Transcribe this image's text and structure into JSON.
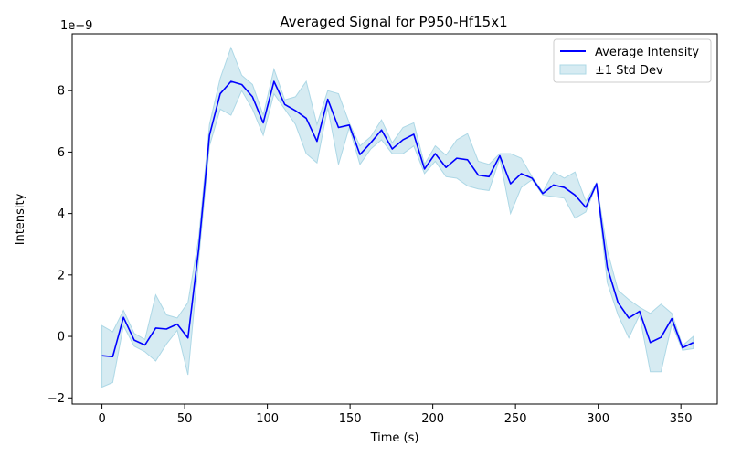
{
  "chart_data": {
    "type": "line",
    "title": "Averaged Signal for P950-Hf15x1",
    "xlabel": "Time (s)",
    "ylabel": "Intensity",
    "y_offset_label": "1e−9",
    "xlim": [
      -18,
      372
    ],
    "ylim": [
      -2.2,
      9.85
    ],
    "x_ticks": [
      0,
      50,
      100,
      150,
      200,
      250,
      300,
      350
    ],
    "x_tick_labels": [
      "0",
      "50",
      "100",
      "150",
      "200",
      "250",
      "300",
      "350"
    ],
    "y_ticks": [
      -2,
      0,
      2,
      4,
      6,
      8
    ],
    "y_tick_labels": [
      "−2",
      "0",
      "2",
      "4",
      "6",
      "8"
    ],
    "grid": false,
    "legend_position": "top-right",
    "series": [
      {
        "name": "Average Intensity",
        "kind": "line",
        "color": "#0000ff",
        "x": [
          0,
          6.5,
          13,
          19.5,
          26,
          32.5,
          39,
          45.5,
          52,
          58.5,
          65,
          71.5,
          78,
          84.5,
          91,
          97.5,
          104,
          110.5,
          117,
          123.5,
          130,
          136.5,
          143,
          149.5,
          156,
          162.5,
          169,
          175.5,
          182,
          188.5,
          195,
          201.5,
          208,
          214.5,
          221,
          227.5,
          234,
          240.5,
          247,
          253.5,
          260,
          266.5,
          273,
          279.5,
          286,
          292.5,
          299,
          305.5,
          312,
          318.5,
          325,
          331.5,
          338,
          344.5,
          351,
          357.5
        ],
        "y": [
          -0.63,
          -0.66,
          0.62,
          -0.12,
          -0.28,
          0.27,
          0.24,
          0.4,
          -0.05,
          2.85,
          6.55,
          7.9,
          8.3,
          8.2,
          7.8,
          6.95,
          8.3,
          7.55,
          7.35,
          7.1,
          6.35,
          7.72,
          6.8,
          6.88,
          5.92,
          6.3,
          6.72,
          6.1,
          6.4,
          6.58,
          5.45,
          5.95,
          5.5,
          5.8,
          5.75,
          5.25,
          5.2,
          5.88,
          4.97,
          5.3,
          5.15,
          4.65,
          4.93,
          4.85,
          4.6,
          4.2,
          4.97,
          2.25,
          1.1,
          0.6,
          0.82,
          -0.2,
          -0.03,
          0.58,
          -0.37,
          -0.2
        ]
      },
      {
        "name": "±1 Std Dev",
        "kind": "band",
        "color": "#add8e6",
        "x": [
          0,
          6.5,
          13,
          19.5,
          26,
          32.5,
          39,
          45.5,
          52,
          58.5,
          65,
          71.5,
          78,
          84.5,
          91,
          97.5,
          104,
          110.5,
          117,
          123.5,
          130,
          136.5,
          143,
          149.5,
          156,
          162.5,
          169,
          175.5,
          182,
          188.5,
          195,
          201.5,
          208,
          214.5,
          221,
          227.5,
          234,
          240.5,
          247,
          253.5,
          260,
          266.5,
          273,
          279.5,
          286,
          292.5,
          299,
          305.5,
          312,
          318.5,
          325,
          331.5,
          338,
          344.5,
          351,
          357.5
        ],
        "upper": [
          0.35,
          0.15,
          0.85,
          0.1,
          -0.1,
          1.35,
          0.7,
          0.6,
          1.1,
          3.2,
          6.9,
          8.4,
          9.4,
          8.5,
          8.2,
          7.2,
          8.7,
          7.7,
          7.8,
          8.3,
          6.9,
          8.0,
          7.9,
          6.95,
          6.2,
          6.5,
          7.05,
          6.3,
          6.8,
          6.95,
          5.6,
          6.2,
          5.9,
          6.4,
          6.6,
          5.7,
          5.6,
          5.95,
          5.95,
          5.8,
          5.2,
          4.7,
          5.35,
          5.15,
          5.35,
          4.4,
          5.0,
          2.8,
          1.5,
          1.2,
          0.95,
          0.75,
          1.05,
          0.75,
          -0.3,
          0.0
        ],
        "lower": [
          -1.65,
          -1.5,
          0.35,
          -0.32,
          -0.5,
          -0.8,
          -0.25,
          0.2,
          -1.25,
          2.5,
          6.2,
          7.4,
          7.2,
          8.0,
          7.4,
          6.55,
          7.9,
          7.4,
          6.9,
          5.95,
          5.65,
          7.45,
          5.6,
          6.8,
          5.6,
          6.1,
          6.4,
          5.95,
          5.95,
          6.2,
          5.3,
          5.7,
          5.2,
          5.15,
          4.9,
          4.8,
          4.75,
          5.8,
          4.0,
          4.85,
          5.1,
          4.6,
          4.55,
          4.5,
          3.85,
          4.05,
          4.95,
          1.75,
          0.7,
          -0.05,
          0.7,
          -1.15,
          -1.15,
          0.4,
          -0.45,
          -0.4
        ]
      }
    ]
  }
}
